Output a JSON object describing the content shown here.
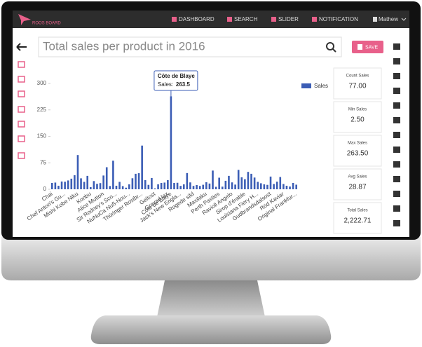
{
  "nav": {
    "brand": "ROOS BOARD",
    "items": [
      "DASHBOARD",
      "SEARCH",
      "SLIDER",
      "NOTIFICATION"
    ],
    "user": "Mathew"
  },
  "title": "Total sales per product in 2016",
  "save": "SAVE",
  "stats": [
    {
      "label": "Count Sales",
      "value": "77.00"
    },
    {
      "label": "Min Sales",
      "value": "2.50"
    },
    {
      "label": "Max Sales",
      "value": "263.50"
    },
    {
      "label": "Avg Sales",
      "value": "28.87"
    },
    {
      "label": "Total Sales",
      "value": "2,222.71"
    }
  ],
  "chart_data": {
    "type": "bar",
    "categories": [
      "Chai",
      null,
      null,
      null,
      "Chef Anton's Gu...",
      null,
      null,
      null,
      "Mishi Kobe Niku",
      null,
      null,
      null,
      "Konbu",
      null,
      null,
      null,
      "Alice Mutton",
      null,
      null,
      null,
      "Sir Rodney's Sco...",
      null,
      null,
      null,
      "NuNuCa Nuß-Nou...",
      null,
      null,
      null,
      "Thüringer Rostbr...",
      null,
      null,
      null,
      "Geitost",
      null,
      null,
      null,
      "Gravad lax",
      "Côte de Blaye",
      null,
      null,
      "Jack's New Engla...",
      null,
      null,
      null,
      "Rogede sild",
      null,
      null,
      null,
      "Maxilaku",
      null,
      null,
      null,
      "Perth Pasties",
      null,
      null,
      null,
      "Ravioli Angelo",
      null,
      null,
      null,
      "Sirop d'érable",
      null,
      null,
      null,
      "Louisiana Fiery H...",
      null,
      null,
      null,
      "Gudbrandsdalsost",
      null,
      null,
      null,
      "Röd Kaviar",
      null,
      null,
      null,
      "Original Frankfur..."
    ],
    "series": [
      {
        "name": "Sales",
        "color": "#3b5db5",
        "values": [
          18,
          19,
          10,
          22,
          21.35,
          25,
          30,
          40,
          97,
          31,
          21,
          38,
          6,
          23.25,
          15.5,
          17.45,
          39,
          62.5,
          9.2,
          81,
          10,
          21,
          9,
          4.5,
          14,
          31.23,
          43.9,
          45.6,
          123.79,
          25.89,
          12.5,
          32,
          2.5,
          14,
          18,
          19,
          26,
          263.5,
          18,
          18.4,
          9.65,
          14,
          46,
          19.45,
          9.5,
          12,
          9.5,
          12.75,
          20,
          16.25,
          53,
          7,
          32.8,
          7.45,
          24,
          38,
          19.5,
          13.25,
          55,
          34,
          28.5,
          49.3,
          43.9,
          33.25,
          21.05,
          17,
          14,
          12.5,
          36,
          15,
          21.5,
          34.8,
          15,
          10,
          7.75,
          18,
          13
        ]
      }
    ],
    "ylim": [
      0,
      300
    ],
    "yticks": [
      0,
      75,
      150,
      225,
      300
    ],
    "legend": "top-right",
    "tooltip_label": "Sales:"
  }
}
